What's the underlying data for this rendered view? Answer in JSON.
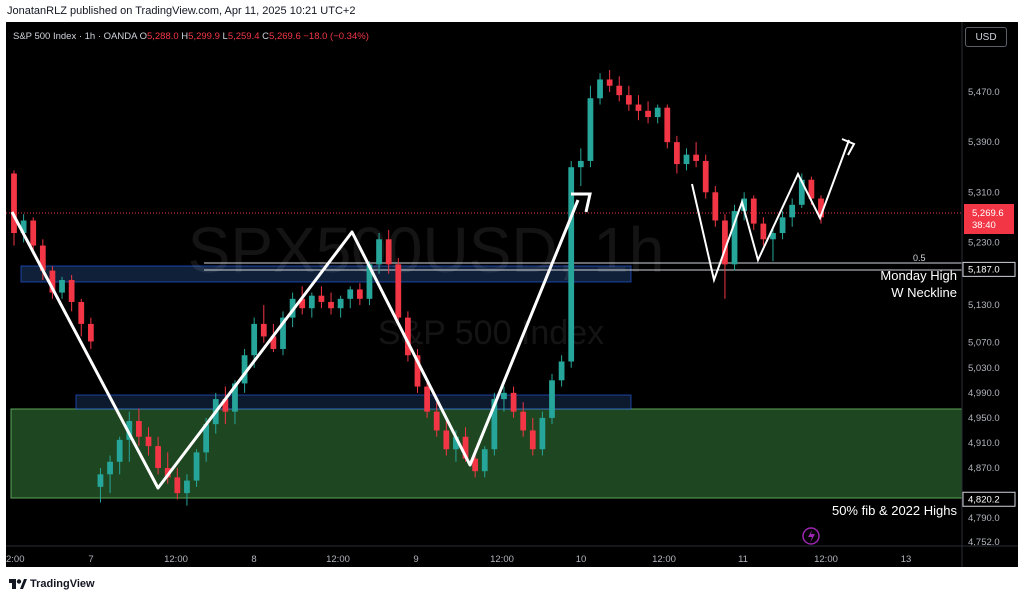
{
  "header": {
    "publisher_text": "JonatanRLZ published on TradingView.com, Apr 11, 2025 10:21 UTC+2"
  },
  "legend": {
    "symbol": "S&P 500 Index · 1h · OANDA",
    "open_label": "O",
    "open": "5,288.0",
    "high_label": "H",
    "high": "5,299.9",
    "low_label": "L",
    "low": "5,259.4",
    "close_label": "C",
    "close": "5,269.6",
    "change": "−18.0 (−0.34%)",
    "value_color": "#f23645"
  },
  "currency_button": {
    "label": "USD"
  },
  "watermark": {
    "ticker": "SPX500USD, 1h",
    "name": "S&P 500 Index"
  },
  "price_axis": {
    "ticks": [
      "5,470.0",
      "5,390.0",
      "5,310.0",
      "5,230.0",
      "5,187.0",
      "5,130.0",
      "5,070.0",
      "5,030.0",
      "4,990.0",
      "4,950.0",
      "4,910.0",
      "4,870.0",
      "4,820.2",
      "4,790.0",
      "4,752.0"
    ],
    "last_price": "5,269.6",
    "countdown": "38:40",
    "last_price_color": "#f23645"
  },
  "time_axis": {
    "ticks": [
      "2:00",
      "7",
      "12:00",
      "8",
      "12:00",
      "9",
      "12:00",
      "10",
      "12:00",
      "11",
      "12:00",
      "13"
    ]
  },
  "annotations": {
    "fib_label": "0.5",
    "neckline_line1": "Monday High",
    "neckline_line2": "W Neckline",
    "support_label": "50% fib & 2022 Highs"
  },
  "colors": {
    "up": "#26a69a",
    "down": "#f23645",
    "support_zone": "#1e4620",
    "blue_zone": "#1c3a66",
    "path": "#ffffff"
  },
  "footer": {
    "brand": "TradingView",
    "logo_icon": "tradingview-logo-icon"
  },
  "chart_data": {
    "type": "candlestick",
    "title": "S&P 500 Index · 1h · OANDA",
    "ylim": [
      4752,
      5530
    ],
    "x_categories": [
      "2:00",
      "7",
      "12:00",
      "8",
      "12:00",
      "9",
      "12:00",
      "10",
      "12:00",
      "11",
      "12:00",
      "13"
    ],
    "candles": [
      {
        "o": 5340,
        "h": 5345,
        "l": 5225,
        "c": 5245
      },
      {
        "o": 5245,
        "h": 5275,
        "l": 5230,
        "c": 5265
      },
      {
        "o": 5265,
        "h": 5270,
        "l": 5210,
        "c": 5225
      },
      {
        "o": 5225,
        "h": 5235,
        "l": 5170,
        "c": 5185
      },
      {
        "o": 5185,
        "h": 5192,
        "l": 5140,
        "c": 5150
      },
      {
        "o": 5150,
        "h": 5175,
        "l": 5140,
        "c": 5170
      },
      {
        "o": 5170,
        "h": 5178,
        "l": 5120,
        "c": 5135
      },
      {
        "o": 5135,
        "h": 5140,
        "l": 5080,
        "c": 5100
      },
      {
        "o": 5100,
        "h": 5110,
        "l": 5060,
        "c": 5072
      },
      {
        "o": 4840,
        "h": 4870,
        "l": 4815,
        "c": 4860
      },
      {
        "o": 4860,
        "h": 4890,
        "l": 4830,
        "c": 4880
      },
      {
        "o": 4880,
        "h": 4920,
        "l": 4860,
        "c": 4915
      },
      {
        "o": 4915,
        "h": 4960,
        "l": 4880,
        "c": 4945
      },
      {
        "o": 4945,
        "h": 4965,
        "l": 4905,
        "c": 4920
      },
      {
        "o": 4920,
        "h": 4935,
        "l": 4890,
        "c": 4905
      },
      {
        "o": 4905,
        "h": 4920,
        "l": 4860,
        "c": 4870
      },
      {
        "o": 4870,
        "h": 4895,
        "l": 4845,
        "c": 4855
      },
      {
        "o": 4855,
        "h": 4870,
        "l": 4820,
        "c": 4830
      },
      {
        "o": 4830,
        "h": 4860,
        "l": 4810,
        "c": 4850
      },
      {
        "o": 4850,
        "h": 4900,
        "l": 4840,
        "c": 4895
      },
      {
        "o": 4895,
        "h": 4950,
        "l": 4880,
        "c": 4940
      },
      {
        "o": 4940,
        "h": 4990,
        "l": 4925,
        "c": 4980
      },
      {
        "o": 4980,
        "h": 5000,
        "l": 4940,
        "c": 4960
      },
      {
        "o": 4960,
        "h": 5010,
        "l": 4940,
        "c": 5005
      },
      {
        "o": 5005,
        "h": 5060,
        "l": 4990,
        "c": 5050
      },
      {
        "o": 5050,
        "h": 5110,
        "l": 5030,
        "c": 5100
      },
      {
        "o": 5100,
        "h": 5130,
        "l": 5070,
        "c": 5080
      },
      {
        "o": 5080,
        "h": 5100,
        "l": 5055,
        "c": 5060
      },
      {
        "o": 5060,
        "h": 5120,
        "l": 5050,
        "c": 5110
      },
      {
        "o": 5110,
        "h": 5150,
        "l": 5095,
        "c": 5140
      },
      {
        "o": 5140,
        "h": 5160,
        "l": 5115,
        "c": 5125
      },
      {
        "o": 5125,
        "h": 5150,
        "l": 5110,
        "c": 5145
      },
      {
        "o": 5145,
        "h": 5160,
        "l": 5125,
        "c": 5135
      },
      {
        "o": 5135,
        "h": 5150,
        "l": 5115,
        "c": 5125
      },
      {
        "o": 5125,
        "h": 5145,
        "l": 5110,
        "c": 5140
      },
      {
        "o": 5140,
        "h": 5160,
        "l": 5125,
        "c": 5155
      },
      {
        "o": 5155,
        "h": 5165,
        "l": 5130,
        "c": 5140
      },
      {
        "o": 5140,
        "h": 5200,
        "l": 5130,
        "c": 5195
      },
      {
        "o": 5195,
        "h": 5245,
        "l": 5180,
        "c": 5235
      },
      {
        "o": 5235,
        "h": 5250,
        "l": 5180,
        "c": 5195
      },
      {
        "o": 5195,
        "h": 5205,
        "l": 5100,
        "c": 5110
      },
      {
        "o": 5110,
        "h": 5120,
        "l": 5040,
        "c": 5050
      },
      {
        "o": 5050,
        "h": 5060,
        "l": 4990,
        "c": 5000
      },
      {
        "o": 5000,
        "h": 5010,
        "l": 4950,
        "c": 4960
      },
      {
        "o": 4960,
        "h": 4975,
        "l": 4920,
        "c": 4930
      },
      {
        "o": 4930,
        "h": 4945,
        "l": 4890,
        "c": 4900
      },
      {
        "o": 4900,
        "h": 4930,
        "l": 4880,
        "c": 4920
      },
      {
        "o": 4920,
        "h": 4935,
        "l": 4880,
        "c": 4885
      },
      {
        "o": 4885,
        "h": 4900,
        "l": 4855,
        "c": 4865
      },
      {
        "o": 4865,
        "h": 4905,
        "l": 4855,
        "c": 4900
      },
      {
        "o": 4900,
        "h": 4990,
        "l": 4890,
        "c": 4980
      },
      {
        "o": 4980,
        "h": 5000,
        "l": 4960,
        "c": 4990
      },
      {
        "o": 4990,
        "h": 5000,
        "l": 4950,
        "c": 4960
      },
      {
        "o": 4960,
        "h": 4975,
        "l": 4920,
        "c": 4930
      },
      {
        "o": 4930,
        "h": 4950,
        "l": 4890,
        "c": 4900
      },
      {
        "o": 4900,
        "h": 4960,
        "l": 4890,
        "c": 4950
      },
      {
        "o": 4950,
        "h": 5020,
        "l": 4940,
        "c": 5010
      },
      {
        "o": 5010,
        "h": 5050,
        "l": 5000,
        "c": 5040
      },
      {
        "o": 5040,
        "h": 5360,
        "l": 5030,
        "c": 5350
      },
      {
        "o": 5350,
        "h": 5380,
        "l": 5320,
        "c": 5360
      },
      {
        "o": 5360,
        "h": 5480,
        "l": 5350,
        "c": 5460
      },
      {
        "o": 5460,
        "h": 5500,
        "l": 5450,
        "c": 5490
      },
      {
        "o": 5490,
        "h": 5505,
        "l": 5470,
        "c": 5480
      },
      {
        "o": 5480,
        "h": 5495,
        "l": 5455,
        "c": 5465
      },
      {
        "o": 5465,
        "h": 5480,
        "l": 5440,
        "c": 5450
      },
      {
        "o": 5450,
        "h": 5465,
        "l": 5425,
        "c": 5440
      },
      {
        "o": 5440,
        "h": 5455,
        "l": 5420,
        "c": 5430
      },
      {
        "o": 5430,
        "h": 5450,
        "l": 5420,
        "c": 5445
      },
      {
        "o": 5445,
        "h": 5450,
        "l": 5380,
        "c": 5390
      },
      {
        "o": 5390,
        "h": 5400,
        "l": 5340,
        "c": 5355
      },
      {
        "o": 5355,
        "h": 5380,
        "l": 5345,
        "c": 5370
      },
      {
        "o": 5370,
        "h": 5390,
        "l": 5350,
        "c": 5360
      },
      {
        "o": 5360,
        "h": 5370,
        "l": 5300,
        "c": 5310
      },
      {
        "o": 5310,
        "h": 5320,
        "l": 5255,
        "c": 5265
      },
      {
        "o": 5265,
        "h": 5275,
        "l": 5140,
        "c": 5195
      },
      {
        "o": 5195,
        "h": 5290,
        "l": 5185,
        "c": 5280
      },
      {
        "o": 5280,
        "h": 5310,
        "l": 5265,
        "c": 5300
      },
      {
        "o": 5300,
        "h": 5305,
        "l": 5250,
        "c": 5260
      },
      {
        "o": 5260,
        "h": 5270,
        "l": 5225,
        "c": 5235
      },
      {
        "o": 5235,
        "h": 5255,
        "l": 5200,
        "c": 5245
      },
      {
        "o": 5245,
        "h": 5280,
        "l": 5235,
        "c": 5270
      },
      {
        "o": 5270,
        "h": 5300,
        "l": 5255,
        "c": 5290
      },
      {
        "o": 5290,
        "h": 5340,
        "l": 5285,
        "c": 5330
      },
      {
        "o": 5330,
        "h": 5335,
        "l": 5290,
        "c": 5300
      },
      {
        "o": 5300,
        "h": 5305,
        "l": 5260,
        "c": 5270
      }
    ],
    "horizontal_levels": [
      {
        "label": "Monday High / W Neckline",
        "price": 5187
      },
      {
        "label": "0.5",
        "price": 5187
      },
      {
        "label": "50% fib & 2022 Highs",
        "price": 4820.2
      },
      {
        "label": "last price",
        "price": 5269.6
      }
    ]
  }
}
